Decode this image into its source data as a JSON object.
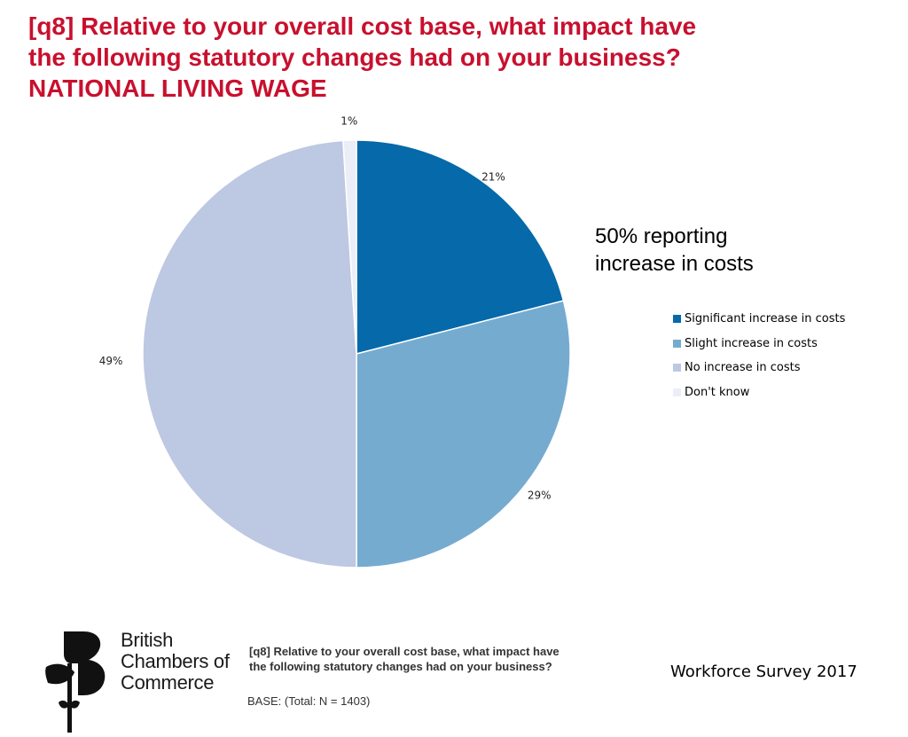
{
  "title": {
    "line1": "[q8] Relative to your overall cost base, what impact have",
    "line2": "the following statutory changes had on your business?",
    "line3": "NATIONAL LIVING WAGE"
  },
  "chart_data": {
    "type": "pie",
    "unit": "%",
    "legend_position": "right",
    "slices": [
      {
        "label": "Significant increase in costs",
        "value": 21,
        "data_label": "21%",
        "color": "#0569aa"
      },
      {
        "label": "Slight increase in costs",
        "value": 29,
        "data_label": "29%",
        "color": "#76abd0"
      },
      {
        "label": "No increase in costs",
        "value": 49,
        "data_label": "49%",
        "color": "#bdc8e2"
      },
      {
        "label": "Don't know",
        "value": 1,
        "data_label": "1%",
        "color": "#ebeef7"
      }
    ]
  },
  "callout": {
    "line1": "50% reporting",
    "line2": "increase in costs"
  },
  "logo": {
    "line1": "British",
    "line2": "Chambers of",
    "line3": "Commerce"
  },
  "footnote": {
    "line1": "[q8] Relative to your overall cost base, what impact have",
    "line2": "the following statutory changes had on your business?"
  },
  "base": "BASE: (Total: N = 1403)",
  "survey": "Workforce Survey 2017"
}
